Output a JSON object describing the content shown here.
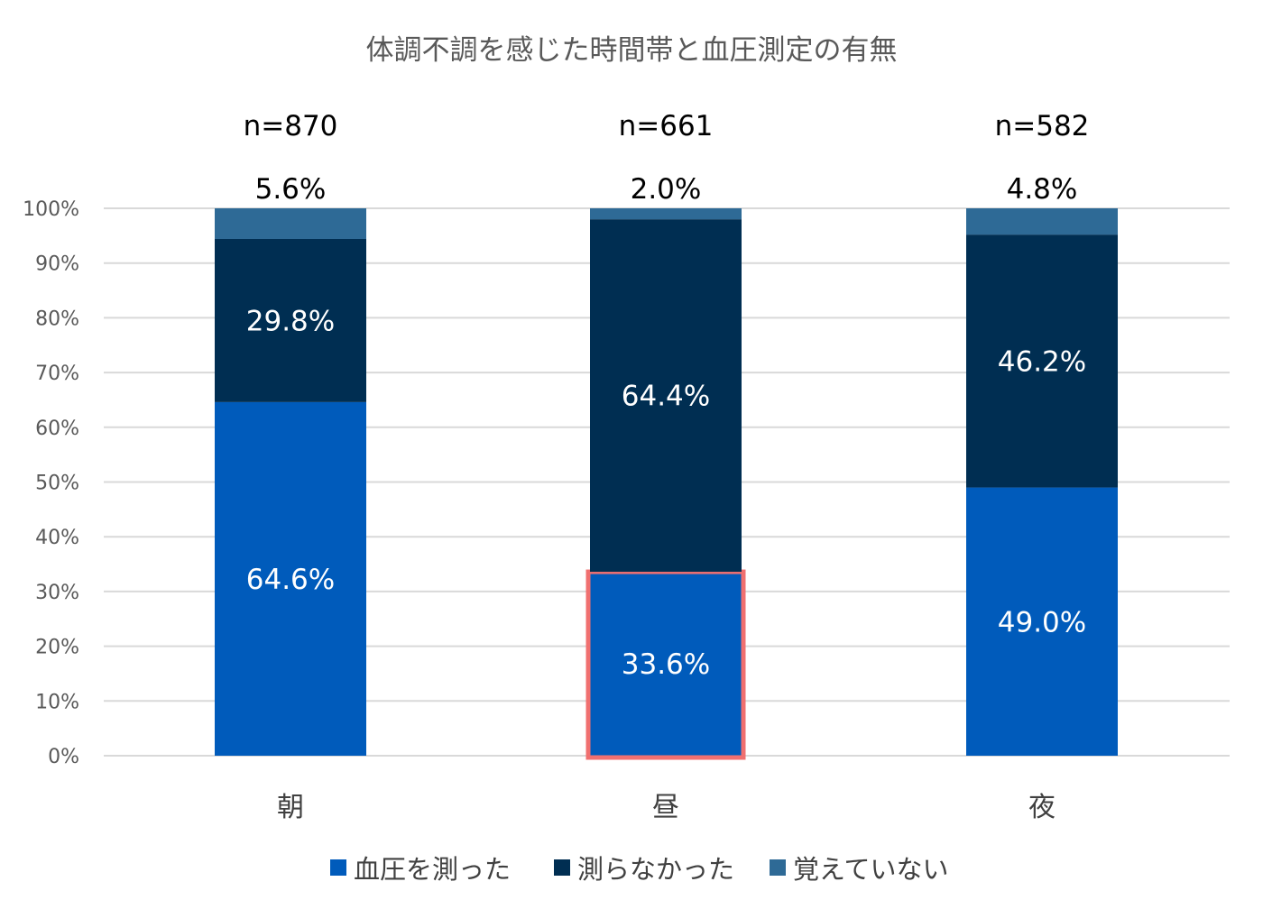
{
  "chart_data": {
    "type": "bar",
    "stacked": true,
    "title": "体調不調を感じた時間帯と血圧測定の有無",
    "categories": [
      "朝",
      "昼",
      "夜"
    ],
    "sample_sizes": [
      "n=870",
      "n=661",
      "n=582"
    ],
    "series": [
      {
        "name": "血圧を測った",
        "values": [
          64.6,
          33.6,
          49.0
        ],
        "labels": [
          "64.6%",
          "33.6%",
          "49.0%"
        ],
        "color": "#005bbb"
      },
      {
        "name": "測らなかった",
        "values": [
          29.8,
          64.4,
          46.2
        ],
        "labels": [
          "29.8%",
          "64.4%",
          "46.2%"
        ],
        "color": "#002e52"
      },
      {
        "name": "覚えていない",
        "values": [
          5.6,
          2.0,
          4.8
        ],
        "labels": [
          "5.6%",
          "2.0%",
          "4.8%"
        ],
        "color": "#2e6a96"
      }
    ],
    "y_ticks": [
      "0%",
      "10%",
      "20%",
      "30%",
      "40%",
      "50%",
      "60%",
      "70%",
      "80%",
      "90%",
      "100%"
    ],
    "ylim": [
      0,
      100
    ],
    "grid": true,
    "legend_position": "bottom",
    "highlight": {
      "category": "昼",
      "series": "血圧を測った",
      "color": "#f07070"
    }
  }
}
